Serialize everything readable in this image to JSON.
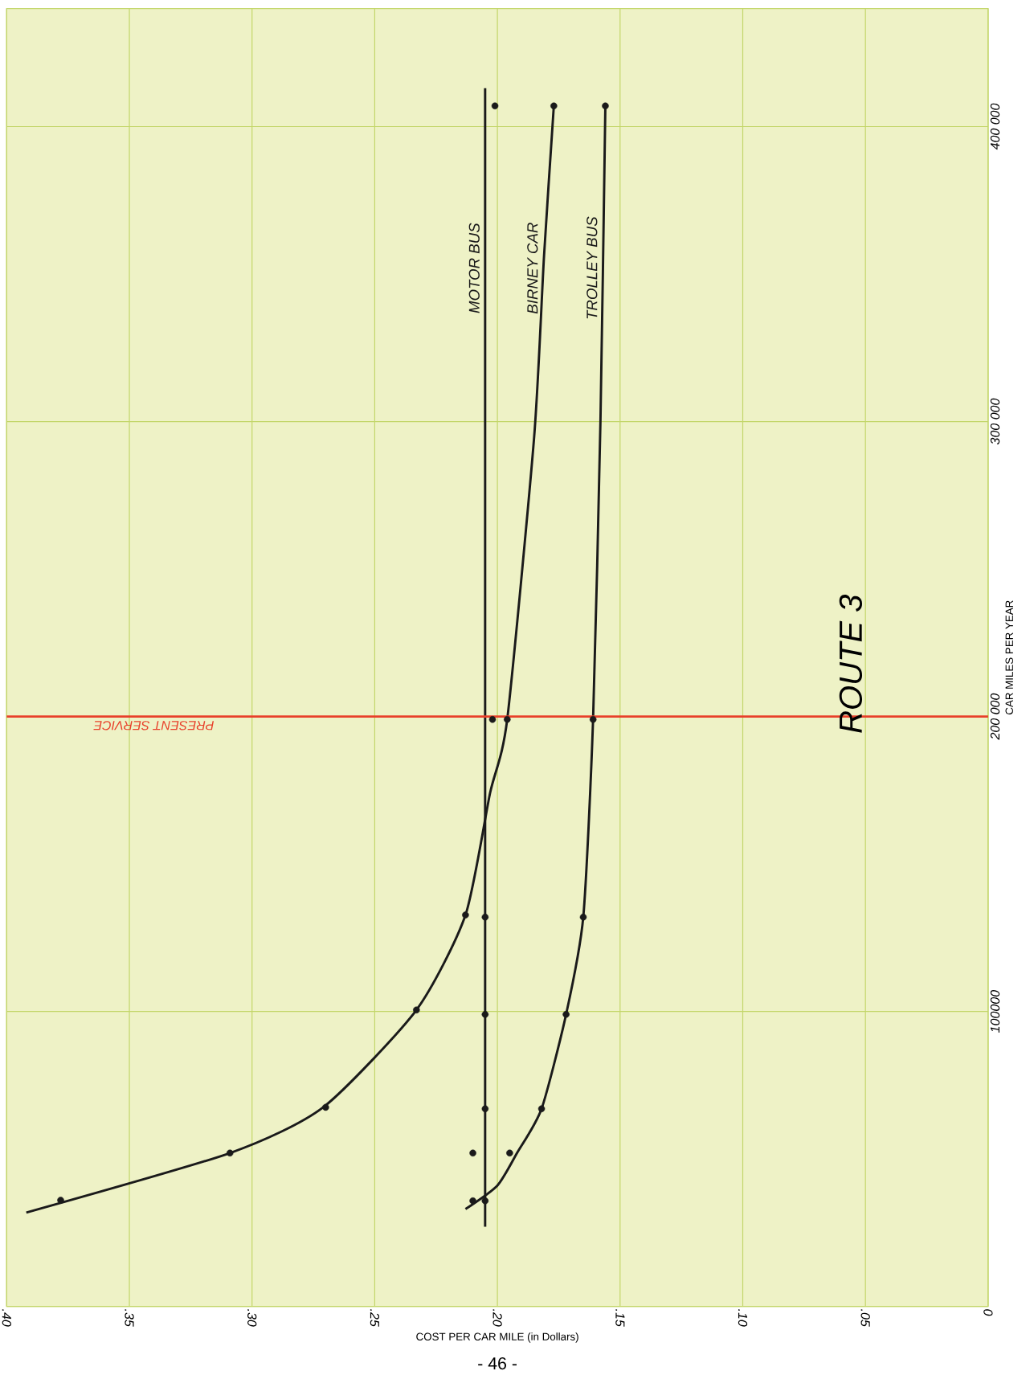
{
  "chart_data": {
    "type": "line",
    "title": "ROUTE 3",
    "xlabel": "COST PER CAR MILE (in Dollars)",
    "ylabel": "CAR MILES PER YEAR",
    "xlim": [
      0.4,
      0
    ],
    "ylim": [
      0,
      440000
    ],
    "xticks": [
      {
        "value": 0,
        "label": "0"
      },
      {
        "value": 0.05,
        "label": ".05"
      },
      {
        "value": 0.1,
        "label": ".10"
      },
      {
        "value": 0.15,
        "label": ".15"
      },
      {
        "value": 0.2,
        "label": ".20"
      },
      {
        "value": 0.25,
        "label": ".25"
      },
      {
        "value": 0.3,
        "label": ".30"
      },
      {
        "value": 0.35,
        "label": ".35"
      },
      {
        "value": 0.4,
        "label": ".40"
      }
    ],
    "yticks": [
      {
        "value": 0,
        "label": null
      },
      100000,
      {
        "value": 200000,
        "label": "200 000"
      },
      {
        "value": 300000,
        "label": "300 000"
      },
      {
        "value": 400000,
        "label": "400 000"
      }
    ],
    "grid": true,
    "ref_lines": [
      {
        "axis": "y",
        "value": 200000,
        "label": "PRESENT SERVICE",
        "color": "#e8402a"
      }
    ],
    "annotations": [
      "- 46 -"
    ],
    "series": [
      {
        "name": "MOTOR BUS",
        "marker": "none",
        "color": "#1a1a1a",
        "x": [
          0.205,
          0.205
        ],
        "values": [
          27000,
          413000
        ]
      },
      {
        "name": "BIRNEY CAR",
        "marker": "none",
        "color": "#1a1a1a",
        "x": [
          0.392,
          0.309,
          0.271,
          0.233,
          0.213,
          0.203,
          0.196,
          0.185,
          0.181,
          0.177
        ],
        "values": [
          31800,
          52000,
          67500,
          100500,
          132700,
          174000,
          199000,
          295000,
          356000,
          407000
        ]
      },
      {
        "name": "TROLLEY BUS",
        "marker": "none",
        "color": "#1a1a1a",
        "x": [
          0.213,
          0.2,
          0.192,
          0.182,
          0.172,
          0.165,
          0.161,
          0.158,
          0.156
        ],
        "values": [
          33000,
          41000,
          52000,
          67000,
          99000,
          132000,
          199000,
          300000,
          407000
        ]
      },
      {
        "type": "scatter",
        "marker": "circle",
        "color": "#1a1a1a",
        "x": [
          0.205,
          0.21,
          0.205,
          0.205,
          0.205,
          0.202,
          0.201,
          0.378,
          0.309,
          0.27,
          0.233,
          0.213,
          0.196,
          0.177,
          0.21,
          0.195,
          0.182,
          0.172,
          0.165,
          0.161,
          0.156
        ],
        "values": [
          35800,
          52000,
          67000,
          99000,
          132000,
          199000,
          407000,
          36000,
          52000,
          67500,
          100500,
          132700,
          199000,
          407000,
          35800,
          52000,
          67000,
          99000,
          132000,
          199000,
          407000
        ]
      }
    ]
  }
}
